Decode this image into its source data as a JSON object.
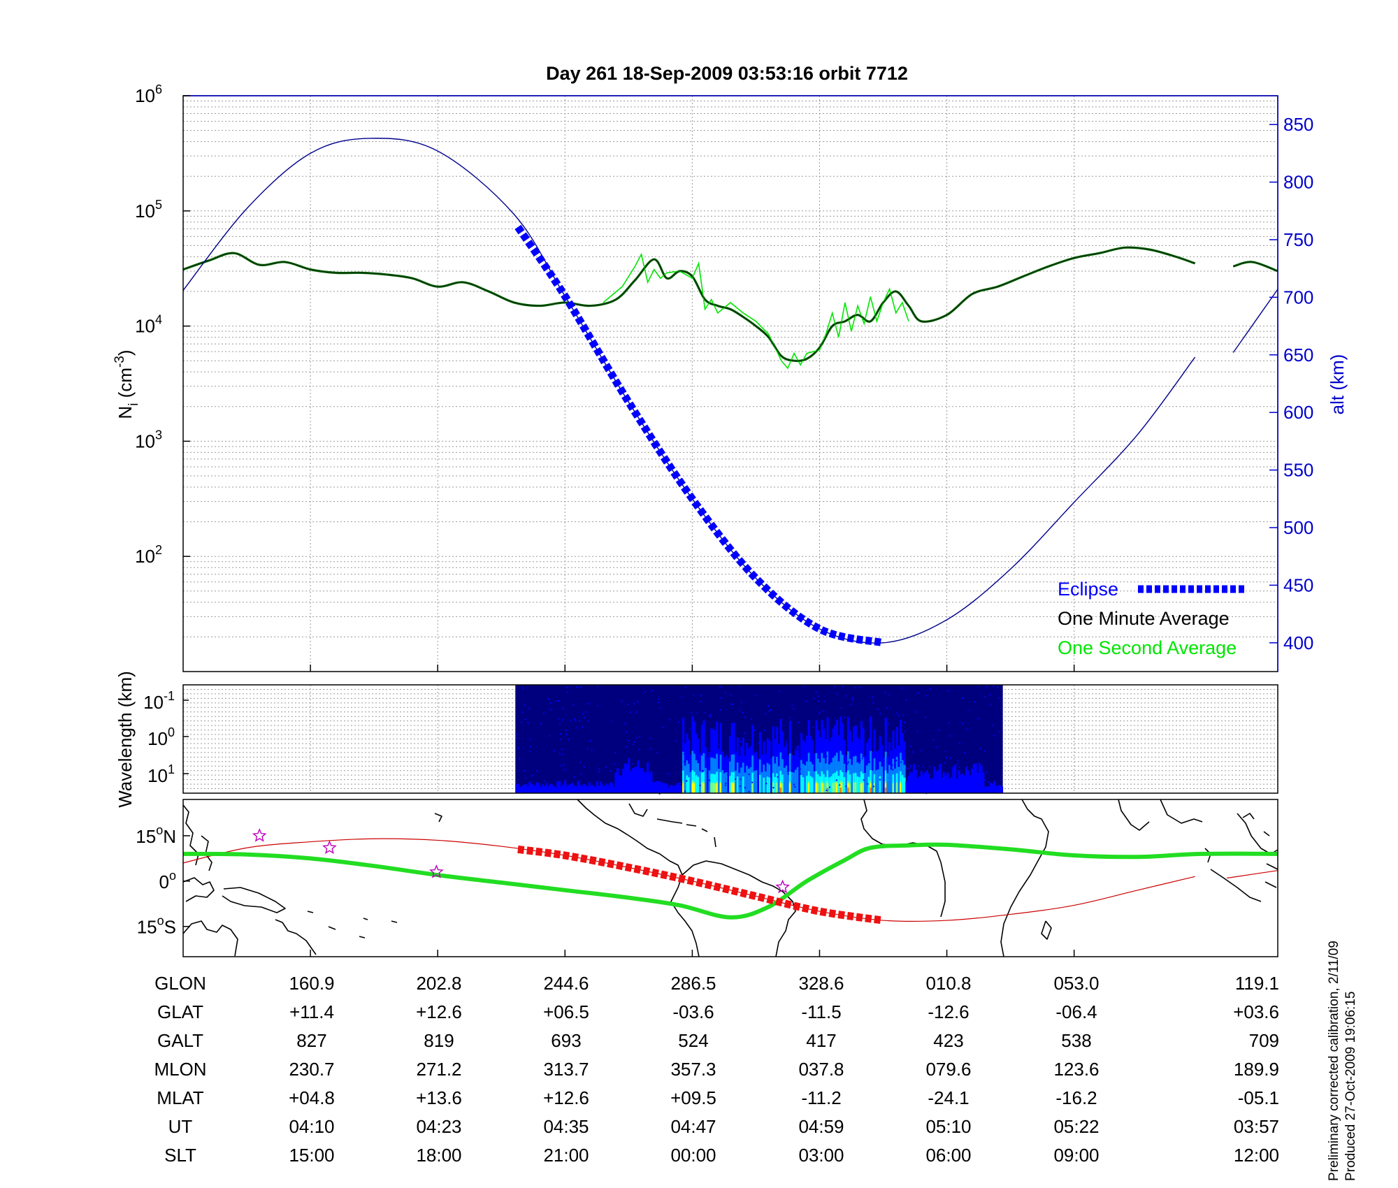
{
  "chart_data": [
    {
      "type": "line",
      "title": "Day 261  18-Sep-2009 03:53:16   orbit 7712",
      "ylabel_left": "N_i (cm^-3)",
      "ylabel_left_parts": {
        "base": "N",
        "sub": "i",
        "open": " (cm",
        "sup": "-3",
        "close": ")"
      },
      "ylabel_right": "alt (km)",
      "yscale_left": "log",
      "ylim_left": [
        10,
        1000000
      ],
      "yticks_left": [
        {
          "base": "10",
          "exp": "6",
          "value": 1000000
        },
        {
          "base": "10",
          "exp": "5",
          "value": 100000
        },
        {
          "base": "10",
          "exp": "4",
          "value": 10000
        },
        {
          "base": "10",
          "exp": "3",
          "value": 1000
        },
        {
          "base": "10",
          "exp": "2",
          "value": 100
        }
      ],
      "ylim_right": [
        375,
        875
      ],
      "yticks_right": [
        400,
        450,
        500,
        550,
        600,
        650,
        700,
        750,
        800,
        850
      ],
      "xlim": [
        0,
        8.6
      ],
      "grid": true,
      "legend_position": "bottom-right",
      "legend": [
        "Eclipse",
        "One Minute Average",
        "One Second Average"
      ],
      "colors": {
        "altitude": "#00008b",
        "eclipse": "#0000ff",
        "minute": "#000000",
        "second": "#00e600",
        "density_ref": "#006400",
        "right_axis": "#0000cc"
      },
      "series": [
        {
          "name": "Altitude",
          "axis": "right",
          "segments": [
            {
              "x": [
                0,
                0.5,
                1.0,
                1.47,
                2.0,
                2.6,
                3.0,
                3.5,
                4.0,
                4.5,
                5.0,
                5.5,
                6.0,
                6.5,
                7.0,
                7.5,
                7.95
              ],
              "y": [
                706,
                777,
                825,
                838,
                827,
                772,
                701,
                609,
                525,
                456,
                412,
                400,
                420,
                464,
                522,
                581,
                648
              ]
            },
            {
              "x": [
                8.25,
                8.6
              ],
              "y": [
                652,
                707
              ]
            }
          ]
        },
        {
          "name": "Eclipse",
          "axis": "right",
          "x": [
            2.63,
            3.0,
            3.5,
            4.0,
            4.5,
            5.0,
            5.5
          ],
          "y": [
            761,
            701,
            609,
            525,
            456,
            412,
            400
          ]
        },
        {
          "name": "One Minute Average",
          "axis": "left",
          "segments": [
            {
              "x": [
                0,
                0.2,
                0.4,
                0.6,
                0.8,
                1.0,
                1.2,
                1.4,
                1.6,
                1.8,
                2.0,
                2.2,
                2.4,
                2.6,
                2.8,
                3.0,
                3.2,
                3.4,
                3.55,
                3.7,
                3.8,
                3.9,
                4.0,
                4.1,
                4.2,
                4.3,
                4.4,
                4.5,
                4.6,
                4.7,
                4.8,
                4.9,
                5.0,
                5.1,
                5.2,
                5.3,
                5.4,
                5.5,
                5.6,
                5.7,
                5.8,
                6.0,
                6.2,
                6.4,
                6.6,
                6.8,
                7.0,
                7.2,
                7.4,
                7.6,
                7.8,
                7.95
              ],
              "y": [
                31000,
                37000,
                43000,
                34000,
                36000,
                31000,
                29000,
                29000,
                28000,
                26000,
                22000,
                24000,
                20000,
                16000,
                15000,
                16000,
                15000,
                17000,
                25000,
                38000,
                26000,
                30000,
                27000,
                17000,
                15000,
                14000,
                12000,
                10000,
                8000,
                5500,
                5000,
                5200,
                6500,
                10000,
                11000,
                12500,
                11000,
                16000,
                20000,
                15000,
                11000,
                12500,
                19000,
                22000,
                27000,
                33000,
                39000,
                43000,
                48000,
                46000,
                40000,
                35000
              ]
            },
            {
              "x": [
                8.25,
                8.4,
                8.6
              ],
              "y": [
                33000,
                36000,
                30000
              ]
            }
          ]
        },
        {
          "name": "One Second Average",
          "axis": "left",
          "x": [
            3.3,
            3.45,
            3.55,
            3.6,
            3.65,
            3.7,
            3.75,
            3.8,
            3.9,
            4.0,
            4.05,
            4.1,
            4.15,
            4.2,
            4.3,
            4.4,
            4.5,
            4.6,
            4.7,
            4.75,
            4.8,
            4.85,
            4.9,
            5.0,
            5.05,
            5.1,
            5.15,
            5.2,
            5.25,
            5.3,
            5.35,
            5.4,
            5.45,
            5.5,
            5.55,
            5.6,
            5.65,
            5.7
          ],
          "y": [
            16000,
            22000,
            33000,
            42000,
            24000,
            31000,
            26000,
            29000,
            30000,
            26000,
            35000,
            14000,
            17000,
            13000,
            16000,
            13000,
            11000,
            8500,
            5000,
            4300,
            5800,
            4600,
            5800,
            6200,
            8500,
            13000,
            8000,
            16000,
            9000,
            15000,
            10500,
            18000,
            11000,
            16000,
            21000,
            13000,
            16000,
            11000
          ]
        }
      ]
    },
    {
      "type": "heatmap",
      "ylabel": "Wavelength (km)",
      "yticks": [
        {
          "base": "10",
          "exp": "-1"
        },
        {
          "base": "10",
          "exp": "0"
        },
        {
          "base": "10",
          "exp": "1"
        }
      ],
      "xlim": [
        0,
        8.6
      ],
      "x_extent": [
        2.61,
        6.44
      ],
      "colors": [
        "#00007f",
        "#0000ff",
        "#0080ff",
        "#00ffff",
        "#80ff80",
        "#ffff00",
        "#ff8000"
      ],
      "grid": true
    },
    {
      "type": "line",
      "map": true,
      "yticks": [
        {
          "value": 15,
          "label": "15",
          "hem": "N"
        },
        {
          "value": 0,
          "label": "0",
          "hem": ""
        },
        {
          "value": -15,
          "label": "15",
          "hem": "S"
        }
      ],
      "ylim": [
        -25,
        27
      ],
      "xlim": [
        0,
        8.6
      ],
      "colors": {
        "geographic": "#cc0000",
        "magnetic_equator": "#22dd22",
        "eclipse": "#ee1111",
        "stars": "#bb00bb",
        "coast": "#000000"
      },
      "series": [
        {
          "name": "Magnetic equator",
          "x": [
            0,
            0.5,
            1.0,
            1.5,
            2.0,
            2.5,
            3.0,
            3.5,
            3.9,
            4.3,
            4.6,
            4.9,
            5.2,
            5.4,
            5.7,
            6.0,
            6.5,
            7.0,
            7.5,
            8.0,
            8.6
          ],
          "y": [
            9,
            8.8,
            7.5,
            5,
            2,
            -0.5,
            -3,
            -5.5,
            -8,
            -12,
            -8.5,
            0,
            7,
            11,
            11.8,
            12,
            10.5,
            8.5,
            8,
            9,
            9
          ]
        },
        {
          "name": "Orbit track",
          "segments": [
            {
              "x": [
                0,
                0.5,
                1.0,
                1.5,
                2.0,
                2.5,
                3.0,
                3.5,
                4.0,
                4.5,
                5.0,
                5.5,
                6.0,
                6.5,
                7.0,
                7.5,
                7.95
              ],
              "y": [
                6,
                11,
                13,
                14,
                13.5,
                11.5,
                8.5,
                4.5,
                0,
                -5,
                -10,
                -13,
                -13,
                -11,
                -8,
                -3,
                1.5
              ]
            },
            {
              "x": [
                8.2,
                8.6
              ],
              "y": [
                1,
                3.5
              ]
            }
          ]
        },
        {
          "name": "Eclipse",
          "x": [
            2.63,
            3.0,
            3.5,
            4.0,
            4.5,
            5.0,
            5.5
          ],
          "y": [
            10.5,
            8.5,
            4.5,
            0,
            -5,
            -10,
            -13
          ]
        },
        {
          "name": "Stars",
          "x": [
            0.6,
            1.15,
            1.99,
            4.71
          ],
          "y": [
            15,
            11,
            3,
            -2
          ]
        }
      ]
    }
  ],
  "table": {
    "rows": [
      {
        "label": "GLON",
        "values": [
          "160.9",
          "202.8",
          "244.6",
          "286.5",
          "328.6",
          "010.8",
          "053.0",
          "119.1"
        ]
      },
      {
        "label": "GLAT",
        "values": [
          "+11.4",
          "+12.6",
          "+06.5",
          "-03.6",
          "-11.5",
          "-12.6",
          "-06.4",
          "+03.6"
        ]
      },
      {
        "label": "GALT",
        "values": [
          "827",
          "819",
          "693",
          "524",
          "417",
          "423",
          "538",
          "709"
        ]
      },
      {
        "label": "MLON",
        "values": [
          "230.7",
          "271.2",
          "313.7",
          "357.3",
          "037.8",
          "079.6",
          "123.6",
          "189.9"
        ]
      },
      {
        "label": "MLAT",
        "values": [
          "+04.8",
          "+13.6",
          "+12.6",
          "+09.5",
          "-11.2",
          "-24.1",
          "-16.2",
          "-05.1"
        ]
      },
      {
        "label": "UT",
        "values": [
          "04:10",
          "04:23",
          "04:35",
          "04:47",
          "04:59",
          "05:10",
          "05:22",
          "03:57"
        ]
      },
      {
        "label": "SLT",
        "values": [
          "15:00",
          "18:00",
          "21:00",
          "00:00",
          "03:00",
          "06:00",
          "09:00",
          "12:00"
        ]
      }
    ]
  },
  "footer": {
    "line1": "Preliminary corrected calibration, 2/11/09",
    "line2": "Produced 27-Oct-2009 19:06:15"
  }
}
